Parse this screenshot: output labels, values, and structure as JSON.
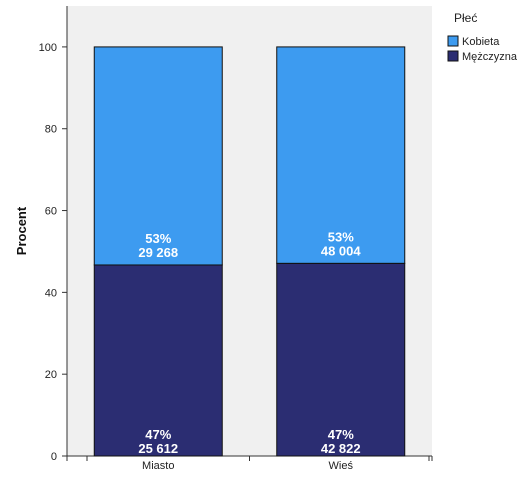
{
  "chart_data": {
    "type": "bar",
    "stacked": true,
    "categories": [
      "Miasto",
      "Wieś"
    ],
    "ylabel": "Procent",
    "xlabel": "",
    "ylim": [
      0,
      110
    ],
    "yticks": [
      "0",
      "20",
      "40",
      "60",
      "80",
      "100"
    ],
    "grid": false,
    "legend": {
      "title": "Płeć",
      "position": "top-right"
    },
    "series": [
      {
        "name": "Mężczyzna",
        "color": "#2b2d72",
        "values": [
          46.7,
          47.1
        ],
        "labels": [
          {
            "pct": "47%",
            "count": "25 612"
          },
          {
            "pct": "47%",
            "count": "42 822"
          }
        ]
      },
      {
        "name": "Kobieta",
        "color": "#3d9bf0",
        "values": [
          53.3,
          52.9
        ],
        "labels": [
          {
            "pct": "53%",
            "count": "29 268"
          },
          {
            "pct": "53%",
            "count": "48 004"
          }
        ]
      }
    ]
  },
  "colors": {
    "plot_background": "#f0f0f0",
    "axis": "#333333"
  }
}
